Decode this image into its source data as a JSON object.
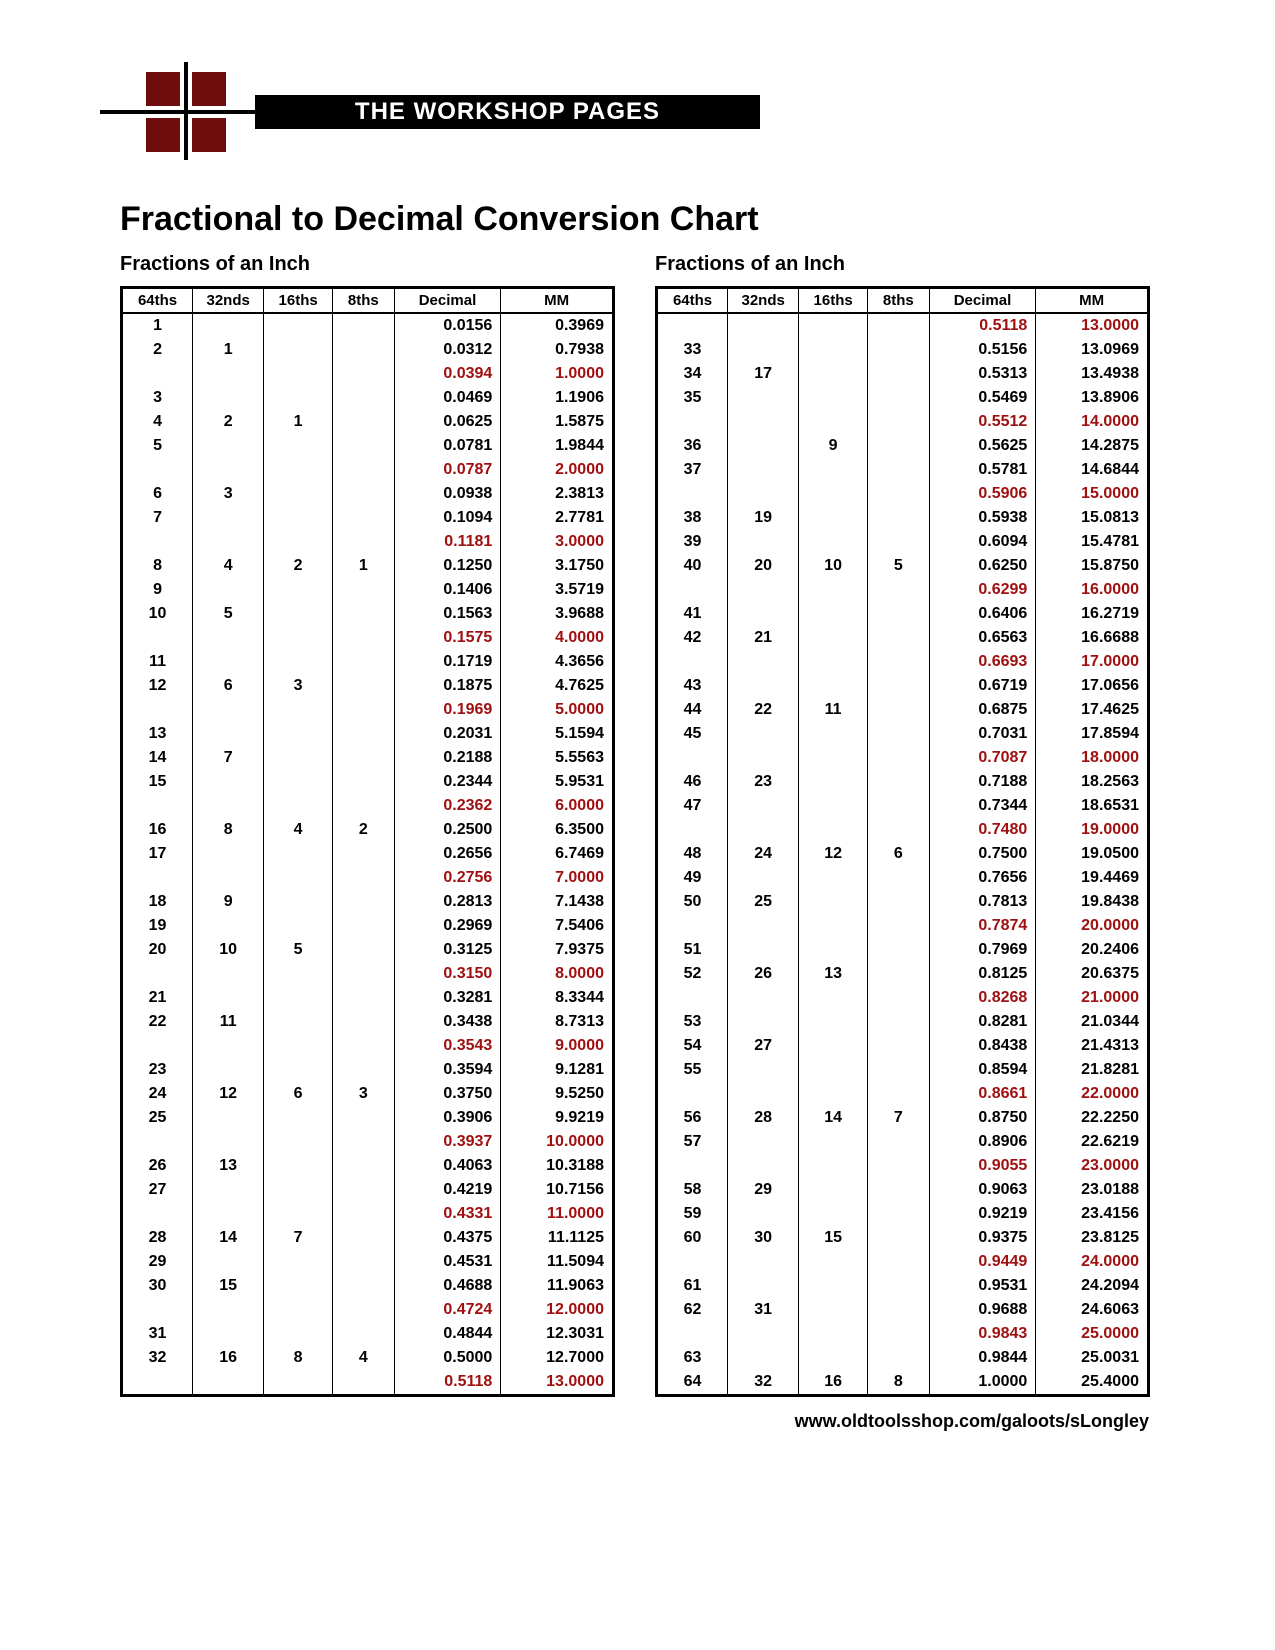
{
  "header": {
    "banner_text": "THE WORKSHOP PAGES",
    "main_title": "Fractional to Decimal Conversion Chart",
    "subtitle": "Fractions of an Inch"
  },
  "footer": {
    "url": "www.oldtoolsshop.com/galoots/sLongley"
  },
  "columns": [
    "64ths",
    "32nds",
    "16ths",
    "8ths",
    "Decimal",
    "MM"
  ],
  "highlight_color": "#a01010",
  "left_rows": [
    {
      "c64": "1",
      "c32": "",
      "c16": "",
      "c8": "",
      "dec": "0.0156",
      "mm": "0.3969",
      "hl": false
    },
    {
      "c64": "2",
      "c32": "1",
      "c16": "",
      "c8": "",
      "dec": "0.0312",
      "mm": "0.7938",
      "hl": false
    },
    {
      "c64": "",
      "c32": "",
      "c16": "",
      "c8": "",
      "dec": "0.0394",
      "mm": "1.0000",
      "hl": true
    },
    {
      "c64": "3",
      "c32": "",
      "c16": "",
      "c8": "",
      "dec": "0.0469",
      "mm": "1.1906",
      "hl": false
    },
    {
      "c64": "4",
      "c32": "2",
      "c16": "1",
      "c8": "",
      "dec": "0.0625",
      "mm": "1.5875",
      "hl": false
    },
    {
      "c64": "5",
      "c32": "",
      "c16": "",
      "c8": "",
      "dec": "0.0781",
      "mm": "1.9844",
      "hl": false
    },
    {
      "c64": "",
      "c32": "",
      "c16": "",
      "c8": "",
      "dec": "0.0787",
      "mm": "2.0000",
      "hl": true
    },
    {
      "c64": "6",
      "c32": "3",
      "c16": "",
      "c8": "",
      "dec": "0.0938",
      "mm": "2.3813",
      "hl": false
    },
    {
      "c64": "7",
      "c32": "",
      "c16": "",
      "c8": "",
      "dec": "0.1094",
      "mm": "2.7781",
      "hl": false
    },
    {
      "c64": "",
      "c32": "",
      "c16": "",
      "c8": "",
      "dec": "0.1181",
      "mm": "3.0000",
      "hl": true
    },
    {
      "c64": "8",
      "c32": "4",
      "c16": "2",
      "c8": "1",
      "dec": "0.1250",
      "mm": "3.1750",
      "hl": false
    },
    {
      "c64": "9",
      "c32": "",
      "c16": "",
      "c8": "",
      "dec": "0.1406",
      "mm": "3.5719",
      "hl": false
    },
    {
      "c64": "10",
      "c32": "5",
      "c16": "",
      "c8": "",
      "dec": "0.1563",
      "mm": "3.9688",
      "hl": false
    },
    {
      "c64": "",
      "c32": "",
      "c16": "",
      "c8": "",
      "dec": "0.1575",
      "mm": "4.0000",
      "hl": true
    },
    {
      "c64": "11",
      "c32": "",
      "c16": "",
      "c8": "",
      "dec": "0.1719",
      "mm": "4.3656",
      "hl": false
    },
    {
      "c64": "12",
      "c32": "6",
      "c16": "3",
      "c8": "",
      "dec": "0.1875",
      "mm": "4.7625",
      "hl": false
    },
    {
      "c64": "",
      "c32": "",
      "c16": "",
      "c8": "",
      "dec": "0.1969",
      "mm": "5.0000",
      "hl": true
    },
    {
      "c64": "13",
      "c32": "",
      "c16": "",
      "c8": "",
      "dec": "0.2031",
      "mm": "5.1594",
      "hl": false
    },
    {
      "c64": "14",
      "c32": "7",
      "c16": "",
      "c8": "",
      "dec": "0.2188",
      "mm": "5.5563",
      "hl": false
    },
    {
      "c64": "15",
      "c32": "",
      "c16": "",
      "c8": "",
      "dec": "0.2344",
      "mm": "5.9531",
      "hl": false
    },
    {
      "c64": "",
      "c32": "",
      "c16": "",
      "c8": "",
      "dec": "0.2362",
      "mm": "6.0000",
      "hl": true
    },
    {
      "c64": "16",
      "c32": "8",
      "c16": "4",
      "c8": "2",
      "dec": "0.2500",
      "mm": "6.3500",
      "hl": false
    },
    {
      "c64": "17",
      "c32": "",
      "c16": "",
      "c8": "",
      "dec": "0.2656",
      "mm": "6.7469",
      "hl": false
    },
    {
      "c64": "",
      "c32": "",
      "c16": "",
      "c8": "",
      "dec": "0.2756",
      "mm": "7.0000",
      "hl": true
    },
    {
      "c64": "18",
      "c32": "9",
      "c16": "",
      "c8": "",
      "dec": "0.2813",
      "mm": "7.1438",
      "hl": false
    },
    {
      "c64": "19",
      "c32": "",
      "c16": "",
      "c8": "",
      "dec": "0.2969",
      "mm": "7.5406",
      "hl": false
    },
    {
      "c64": "20",
      "c32": "10",
      "c16": "5",
      "c8": "",
      "dec": "0.3125",
      "mm": "7.9375",
      "hl": false
    },
    {
      "c64": "",
      "c32": "",
      "c16": "",
      "c8": "",
      "dec": "0.3150",
      "mm": "8.0000",
      "hl": true
    },
    {
      "c64": "21",
      "c32": "",
      "c16": "",
      "c8": "",
      "dec": "0.3281",
      "mm": "8.3344",
      "hl": false
    },
    {
      "c64": "22",
      "c32": "11",
      "c16": "",
      "c8": "",
      "dec": "0.3438",
      "mm": "8.7313",
      "hl": false
    },
    {
      "c64": "",
      "c32": "",
      "c16": "",
      "c8": "",
      "dec": "0.3543",
      "mm": "9.0000",
      "hl": true
    },
    {
      "c64": "23",
      "c32": "",
      "c16": "",
      "c8": "",
      "dec": "0.3594",
      "mm": "9.1281",
      "hl": false
    },
    {
      "c64": "24",
      "c32": "12",
      "c16": "6",
      "c8": "3",
      "dec": "0.3750",
      "mm": "9.5250",
      "hl": false
    },
    {
      "c64": "25",
      "c32": "",
      "c16": "",
      "c8": "",
      "dec": "0.3906",
      "mm": "9.9219",
      "hl": false
    },
    {
      "c64": "",
      "c32": "",
      "c16": "",
      "c8": "",
      "dec": "0.3937",
      "mm": "10.0000",
      "hl": true
    },
    {
      "c64": "26",
      "c32": "13",
      "c16": "",
      "c8": "",
      "dec": "0.4063",
      "mm": "10.3188",
      "hl": false
    },
    {
      "c64": "27",
      "c32": "",
      "c16": "",
      "c8": "",
      "dec": "0.4219",
      "mm": "10.7156",
      "hl": false
    },
    {
      "c64": "",
      "c32": "",
      "c16": "",
      "c8": "",
      "dec": "0.4331",
      "mm": "11.0000",
      "hl": true
    },
    {
      "c64": "28",
      "c32": "14",
      "c16": "7",
      "c8": "",
      "dec": "0.4375",
      "mm": "11.1125",
      "hl": false
    },
    {
      "c64": "29",
      "c32": "",
      "c16": "",
      "c8": "",
      "dec": "0.4531",
      "mm": "11.5094",
      "hl": false
    },
    {
      "c64": "30",
      "c32": "15",
      "c16": "",
      "c8": "",
      "dec": "0.4688",
      "mm": "11.9063",
      "hl": false
    },
    {
      "c64": "",
      "c32": "",
      "c16": "",
      "c8": "",
      "dec": "0.4724",
      "mm": "12.0000",
      "hl": true
    },
    {
      "c64": "31",
      "c32": "",
      "c16": "",
      "c8": "",
      "dec": "0.4844",
      "mm": "12.3031",
      "hl": false
    },
    {
      "c64": "32",
      "c32": "16",
      "c16": "8",
      "c8": "4",
      "dec": "0.5000",
      "mm": "12.7000",
      "hl": false
    },
    {
      "c64": "",
      "c32": "",
      "c16": "",
      "c8": "",
      "dec": "0.5118",
      "mm": "13.0000",
      "hl": true
    }
  ],
  "right_rows": [
    {
      "c64": "",
      "c32": "",
      "c16": "",
      "c8": "",
      "dec": "0.5118",
      "mm": "13.0000",
      "hl": true
    },
    {
      "c64": "33",
      "c32": "",
      "c16": "",
      "c8": "",
      "dec": "0.5156",
      "mm": "13.0969",
      "hl": false
    },
    {
      "c64": "34",
      "c32": "17",
      "c16": "",
      "c8": "",
      "dec": "0.5313",
      "mm": "13.4938",
      "hl": false
    },
    {
      "c64": "35",
      "c32": "",
      "c16": "",
      "c8": "",
      "dec": "0.5469",
      "mm": "13.8906",
      "hl": false
    },
    {
      "c64": "",
      "c32": "",
      "c16": "",
      "c8": "",
      "dec": "0.5512",
      "mm": "14.0000",
      "hl": true
    },
    {
      "c64": "36",
      "c32": "",
      "c16": "9",
      "c8": "",
      "dec": "0.5625",
      "mm": "14.2875",
      "hl": false
    },
    {
      "c64": "37",
      "c32": "",
      "c16": "",
      "c8": "",
      "dec": "0.5781",
      "mm": "14.6844",
      "hl": false
    },
    {
      "c64": "",
      "c32": "",
      "c16": "",
      "c8": "",
      "dec": "0.5906",
      "mm": "15.0000",
      "hl": true
    },
    {
      "c64": "38",
      "c32": "19",
      "c16": "",
      "c8": "",
      "dec": "0.5938",
      "mm": "15.0813",
      "hl": false
    },
    {
      "c64": "39",
      "c32": "",
      "c16": "",
      "c8": "",
      "dec": "0.6094",
      "mm": "15.4781",
      "hl": false
    },
    {
      "c64": "40",
      "c32": "20",
      "c16": "10",
      "c8": "5",
      "dec": "0.6250",
      "mm": "15.8750",
      "hl": false
    },
    {
      "c64": "",
      "c32": "",
      "c16": "",
      "c8": "",
      "dec": "0.6299",
      "mm": "16.0000",
      "hl": true
    },
    {
      "c64": "41",
      "c32": "",
      "c16": "",
      "c8": "",
      "dec": "0.6406",
      "mm": "16.2719",
      "hl": false
    },
    {
      "c64": "42",
      "c32": "21",
      "c16": "",
      "c8": "",
      "dec": "0.6563",
      "mm": "16.6688",
      "hl": false
    },
    {
      "c64": "",
      "c32": "",
      "c16": "",
      "c8": "",
      "dec": "0.6693",
      "mm": "17.0000",
      "hl": true
    },
    {
      "c64": "43",
      "c32": "",
      "c16": "",
      "c8": "",
      "dec": "0.6719",
      "mm": "17.0656",
      "hl": false
    },
    {
      "c64": "44",
      "c32": "22",
      "c16": "11",
      "c8": "",
      "dec": "0.6875",
      "mm": "17.4625",
      "hl": false
    },
    {
      "c64": "45",
      "c32": "",
      "c16": "",
      "c8": "",
      "dec": "0.7031",
      "mm": "17.8594",
      "hl": false
    },
    {
      "c64": "",
      "c32": "",
      "c16": "",
      "c8": "",
      "dec": "0.7087",
      "mm": "18.0000",
      "hl": true
    },
    {
      "c64": "46",
      "c32": "23",
      "c16": "",
      "c8": "",
      "dec": "0.7188",
      "mm": "18.2563",
      "hl": false
    },
    {
      "c64": "47",
      "c32": "",
      "c16": "",
      "c8": "",
      "dec": "0.7344",
      "mm": "18.6531",
      "hl": false
    },
    {
      "c64": "",
      "c32": "",
      "c16": "",
      "c8": "",
      "dec": "0.7480",
      "mm": "19.0000",
      "hl": true
    },
    {
      "c64": "48",
      "c32": "24",
      "c16": "12",
      "c8": "6",
      "dec": "0.7500",
      "mm": "19.0500",
      "hl": false
    },
    {
      "c64": "49",
      "c32": "",
      "c16": "",
      "c8": "",
      "dec": "0.7656",
      "mm": "19.4469",
      "hl": false
    },
    {
      "c64": "50",
      "c32": "25",
      "c16": "",
      "c8": "",
      "dec": "0.7813",
      "mm": "19.8438",
      "hl": false
    },
    {
      "c64": "",
      "c32": "",
      "c16": "",
      "c8": "",
      "dec": "0.7874",
      "mm": "20.0000",
      "hl": true
    },
    {
      "c64": "51",
      "c32": "",
      "c16": "",
      "c8": "",
      "dec": "0.7969",
      "mm": "20.2406",
      "hl": false
    },
    {
      "c64": "52",
      "c32": "26",
      "c16": "13",
      "c8": "",
      "dec": "0.8125",
      "mm": "20.6375",
      "hl": false
    },
    {
      "c64": "",
      "c32": "",
      "c16": "",
      "c8": "",
      "dec": "0.8268",
      "mm": "21.0000",
      "hl": true
    },
    {
      "c64": "53",
      "c32": "",
      "c16": "",
      "c8": "",
      "dec": "0.8281",
      "mm": "21.0344",
      "hl": false
    },
    {
      "c64": "54",
      "c32": "27",
      "c16": "",
      "c8": "",
      "dec": "0.8438",
      "mm": "21.4313",
      "hl": false
    },
    {
      "c64": "55",
      "c32": "",
      "c16": "",
      "c8": "",
      "dec": "0.8594",
      "mm": "21.8281",
      "hl": false
    },
    {
      "c64": "",
      "c32": "",
      "c16": "",
      "c8": "",
      "dec": "0.8661",
      "mm": "22.0000",
      "hl": true
    },
    {
      "c64": "56",
      "c32": "28",
      "c16": "14",
      "c8": "7",
      "dec": "0.8750",
      "mm": "22.2250",
      "hl": false
    },
    {
      "c64": "57",
      "c32": "",
      "c16": "",
      "c8": "",
      "dec": "0.8906",
      "mm": "22.6219",
      "hl": false
    },
    {
      "c64": "",
      "c32": "",
      "c16": "",
      "c8": "",
      "dec": "0.9055",
      "mm": "23.0000",
      "hl": true
    },
    {
      "c64": "58",
      "c32": "29",
      "c16": "",
      "c8": "",
      "dec": "0.9063",
      "mm": "23.0188",
      "hl": false
    },
    {
      "c64": "59",
      "c32": "",
      "c16": "",
      "c8": "",
      "dec": "0.9219",
      "mm": "23.4156",
      "hl": false
    },
    {
      "c64": "60",
      "c32": "30",
      "c16": "15",
      "c8": "",
      "dec": "0.9375",
      "mm": "23.8125",
      "hl": false
    },
    {
      "c64": "",
      "c32": "",
      "c16": "",
      "c8": "",
      "dec": "0.9449",
      "mm": "24.0000",
      "hl": true
    },
    {
      "c64": "61",
      "c32": "",
      "c16": "",
      "c8": "",
      "dec": "0.9531",
      "mm": "24.2094",
      "hl": false
    },
    {
      "c64": "62",
      "c32": "31",
      "c16": "",
      "c8": "",
      "dec": "0.9688",
      "mm": "24.6063",
      "hl": false
    },
    {
      "c64": "",
      "c32": "",
      "c16": "",
      "c8": "",
      "dec": "0.9843",
      "mm": "25.0000",
      "hl": true
    },
    {
      "c64": "63",
      "c32": "",
      "c16": "",
      "c8": "",
      "dec": "0.9844",
      "mm": "25.0031",
      "hl": false
    },
    {
      "c64": "64",
      "c32": "32",
      "c16": "16",
      "c8": "8",
      "dec": "1.0000",
      "mm": "25.4000",
      "hl": false
    }
  ]
}
